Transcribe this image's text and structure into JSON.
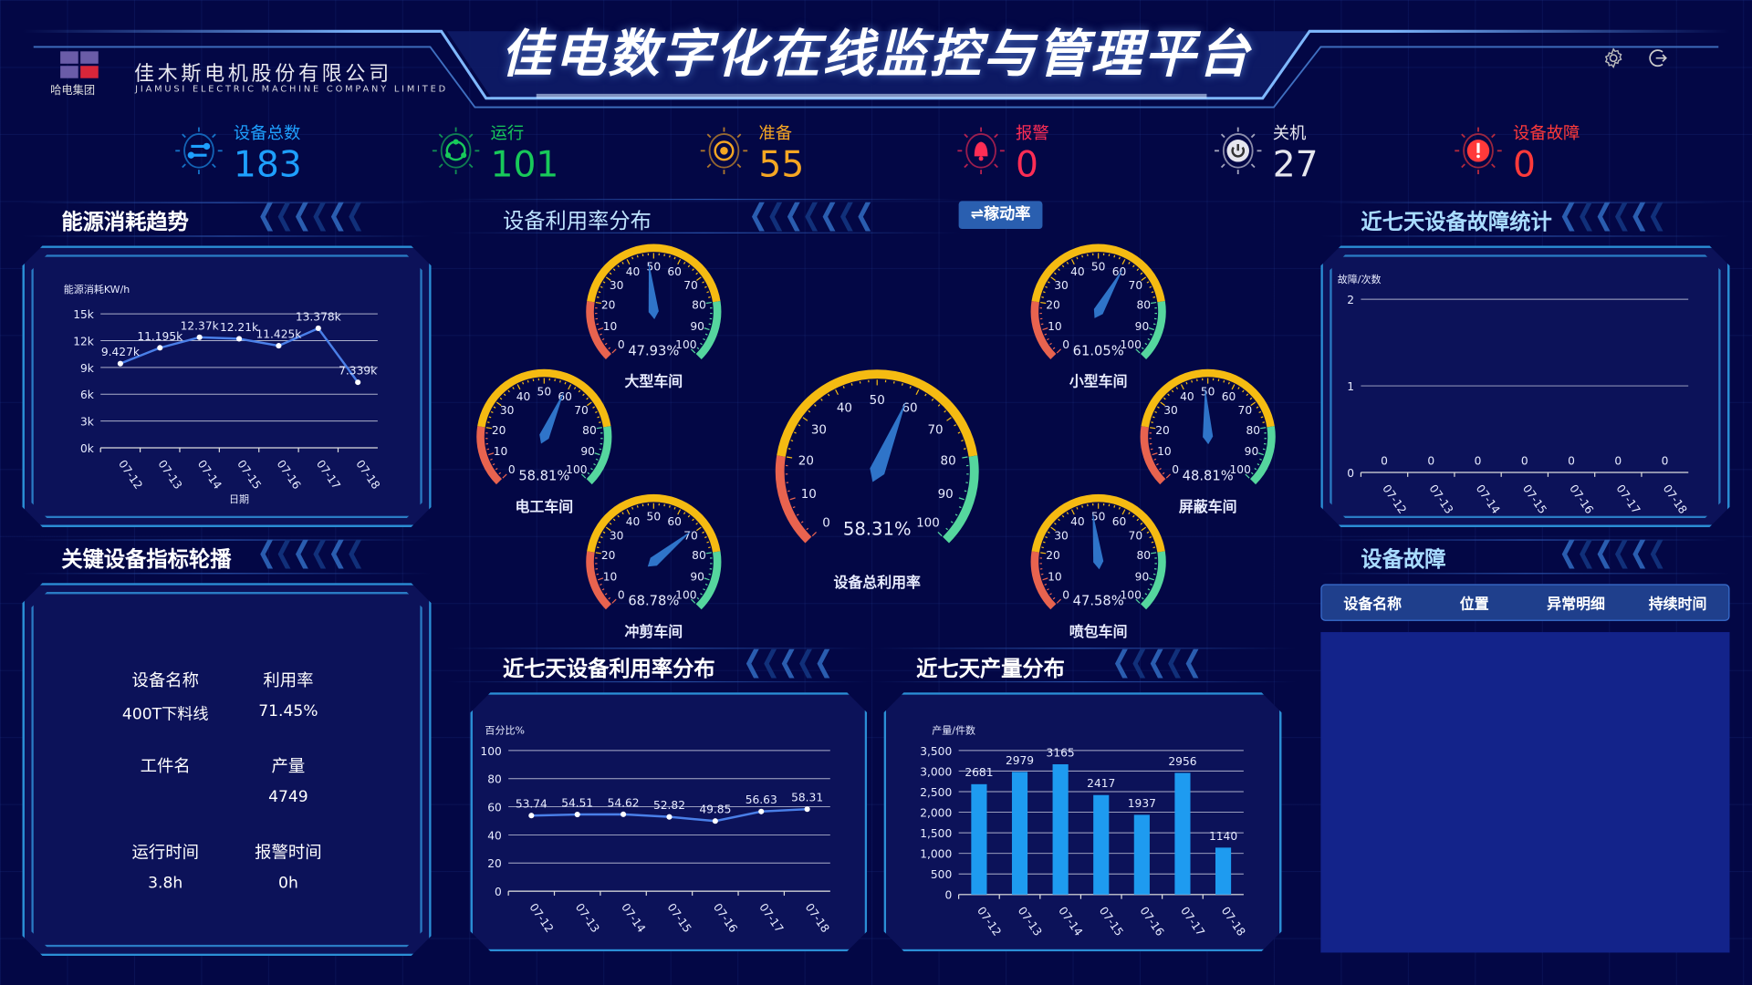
{
  "header": {
    "title": "佳电数字化在线监控与管理平台",
    "company_cn": "佳木斯电机股份有限公司",
    "company_en": "JIAMUSI ELECTRIC MACHINE COMPANY LIMITED",
    "logo_text": "哈电集团"
  },
  "toolbar": {
    "settings_icon": "gear-icon",
    "logout_icon": "logout-icon"
  },
  "stats": [
    {
      "label": "设备总数",
      "value": "183",
      "color": "#1ea0ff",
      "icon": "sliders-icon"
    },
    {
      "label": "运行",
      "value": "101",
      "color": "#18c95a",
      "icon": "cycle-icon"
    },
    {
      "label": "准备",
      "value": "55",
      "color": "#f5a623",
      "icon": "target-icon"
    },
    {
      "label": "报警",
      "value": "0",
      "color": "#ff2d55",
      "icon": "bell-icon"
    },
    {
      "label": "关机",
      "value": "27",
      "color": "#e6e6ee",
      "icon": "power-icon"
    },
    {
      "label": "设备故障",
      "value": "0",
      "color": "#ff3a3a",
      "icon": "alert-icon"
    }
  ],
  "sections": {
    "energy": "能源消耗趋势",
    "key_device": "关键设备指标轮播",
    "utilization": "设备利用率分布",
    "fault_stats": "近七天设备故障统计",
    "faults": "设备故障",
    "util7": "近七天设备利用率分布",
    "prod7": "近七天产量分布"
  },
  "toggle_label": "⇌稼动率",
  "gauges": [
    {
      "name": "大型车间",
      "value": 47.93
    },
    {
      "name": "小型车间",
      "value": 61.05
    },
    {
      "name": "电工车间",
      "value": 58.81
    },
    {
      "name": "屏蔽车间",
      "value": 48.81
    },
    {
      "name": "冲剪车间",
      "value": 68.78
    },
    {
      "name": "喷包车间",
      "value": 47.58
    }
  ],
  "main_gauge": {
    "name": "设备总利用率",
    "value": 58.31
  },
  "gauge_colors": {
    "low": "#e8634f",
    "mid": "#f5bb12",
    "high": "#55d69e",
    "needle": "#2f74c9"
  },
  "key_device": {
    "items": [
      {
        "label": "设备名称",
        "value": "400T下料线"
      },
      {
        "label": "利用率",
        "value": "71.45%"
      },
      {
        "label": "工件名",
        "value": ""
      },
      {
        "label": "产量",
        "value": "4749"
      },
      {
        "label": "运行时间",
        "value": "3.8h"
      },
      {
        "label": "报警时间",
        "value": "0h"
      }
    ]
  },
  "fault_table": {
    "columns": [
      "设备名称",
      "位置",
      "异常明细",
      "持续时间"
    ],
    "rows": []
  },
  "chart_data": [
    {
      "id": "energy",
      "type": "line",
      "ylabel": "能源消耗KW/h",
      "xlabel": "日期",
      "categories": [
        "07-12",
        "07-13",
        "07-14",
        "07-15",
        "07-16",
        "07-17",
        "07-18"
      ],
      "values": [
        9427,
        11195,
        12370,
        12210,
        11425,
        13378,
        7339
      ],
      "labels": [
        "9.427k",
        "11.195k",
        "12.37k",
        "12.21k",
        "11.425k",
        "13.378k",
        "7.339k"
      ],
      "yticks": [
        "0k",
        "3k",
        "6k",
        "9k",
        "12k",
        "15k"
      ],
      "ylim": [
        0,
        15000
      ],
      "grid": true,
      "color": "#4a7fe8"
    },
    {
      "id": "util7",
      "type": "line",
      "ylabel": "百分比%",
      "categories": [
        "07-12",
        "07-13",
        "07-14",
        "07-15",
        "07-16",
        "07-17",
        "07-18"
      ],
      "values": [
        53.74,
        54.51,
        54.62,
        52.82,
        49.85,
        56.63,
        58.31
      ],
      "labels": [
        "53.74",
        "54.51",
        "54.62",
        "52.82",
        "49.85",
        "56.63",
        "58.31"
      ],
      "yticks": [
        "0",
        "20",
        "40",
        "60",
        "80",
        "100"
      ],
      "ylim": [
        0,
        100
      ],
      "grid": true,
      "color": "#4a7fe8"
    },
    {
      "id": "prod7",
      "type": "bar",
      "ylabel": "产量/件数",
      "categories": [
        "07-12",
        "07-13",
        "07-14",
        "07-15",
        "07-16",
        "07-17",
        "07-18"
      ],
      "values": [
        2681,
        2979,
        3165,
        2417,
        1937,
        2956,
        1140
      ],
      "labels": [
        "2681",
        "2979",
        "3165",
        "2417",
        "1937",
        "2956",
        "1140"
      ],
      "yticks": [
        "0",
        "500",
        "1,000",
        "1,500",
        "2,000",
        "2,500",
        "3,000",
        "3,500"
      ],
      "ylim": [
        0,
        3500
      ],
      "grid": true,
      "color": "#1e9bf0"
    },
    {
      "id": "faults",
      "type": "bar",
      "ylabel": "故障/次数",
      "categories": [
        "07-12",
        "07-13",
        "07-14",
        "07-15",
        "07-16",
        "07-17",
        "07-18"
      ],
      "values": [
        0,
        0,
        0,
        0,
        0,
        0,
        0
      ],
      "labels": [
        "0",
        "0",
        "0",
        "0",
        "0",
        "0",
        "0"
      ],
      "yticks": [
        "0",
        "1",
        "2"
      ],
      "ylim": [
        0,
        2
      ],
      "grid": true,
      "color": "#1e9bf0"
    }
  ]
}
